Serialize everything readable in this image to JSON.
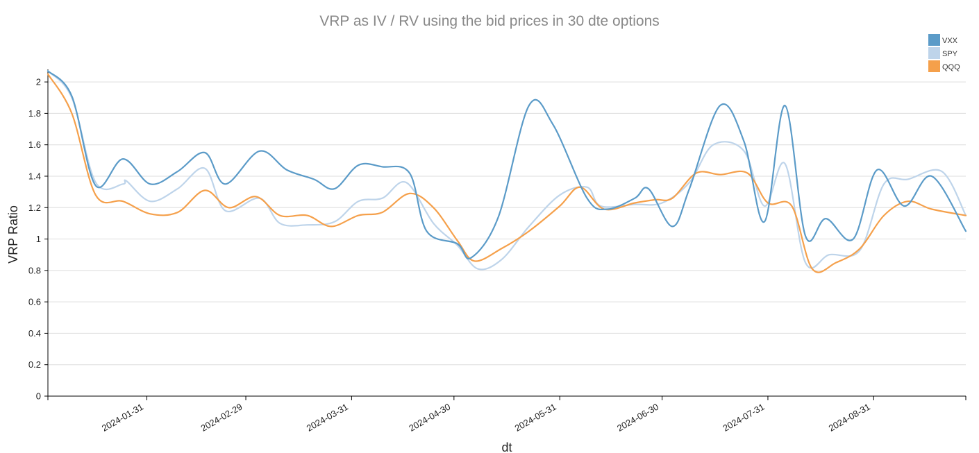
{
  "chart_data": {
    "type": "line",
    "title": "VRP as IV / RV using the bid prices in 30 dte options",
    "xlabel": "dt",
    "ylabel": "VRP Ratio",
    "ylim": [
      0,
      2.08
    ],
    "xlim": [
      "2024-01-02",
      "2024-09-27"
    ],
    "y_ticks": [
      0,
      0.2,
      0.4,
      0.6,
      0.8,
      1,
      1.2,
      1.4,
      1.6,
      1.8,
      2
    ],
    "x_ticks": [
      "2024-01-31",
      "2024-02-29",
      "2024-03-31",
      "2024-04-30",
      "2024-05-31",
      "2024-06-30",
      "2024-07-31",
      "2024-08-31"
    ],
    "grid": true,
    "legend_position": "top-right",
    "series": [
      {
        "name": "VXX",
        "color": "#5b9bc8",
        "points": [
          [
            "2024-01-02",
            2.07
          ],
          [
            "2024-01-09",
            1.91
          ],
          [
            "2024-01-16",
            1.34
          ],
          [
            "2024-01-24",
            1.51
          ],
          [
            "2024-02-01",
            1.35
          ],
          [
            "2024-02-09",
            1.43
          ],
          [
            "2024-02-17",
            1.55
          ],
          [
            "2024-02-23",
            1.35
          ],
          [
            "2024-03-04",
            1.56
          ],
          [
            "2024-03-12",
            1.44
          ],
          [
            "2024-03-20",
            1.38
          ],
          [
            "2024-03-26",
            1.32
          ],
          [
            "2024-04-02",
            1.47
          ],
          [
            "2024-04-09",
            1.46
          ],
          [
            "2024-04-17",
            1.42
          ],
          [
            "2024-04-22",
            1.05
          ],
          [
            "2024-05-01",
            0.97
          ],
          [
            "2024-05-05",
            0.88
          ],
          [
            "2024-05-13",
            1.14
          ],
          [
            "2024-05-22",
            1.85
          ],
          [
            "2024-05-29",
            1.73
          ],
          [
            "2024-06-08",
            1.26
          ],
          [
            "2024-06-14",
            1.19
          ],
          [
            "2024-06-22",
            1.26
          ],
          [
            "2024-06-26",
            1.32
          ],
          [
            "2024-07-03",
            1.08
          ],
          [
            "2024-07-08",
            1.32
          ],
          [
            "2024-07-17",
            1.85
          ],
          [
            "2024-07-24",
            1.62
          ],
          [
            "2024-07-30",
            1.11
          ],
          [
            "2024-08-05",
            1.85
          ],
          [
            "2024-08-11",
            1.02
          ],
          [
            "2024-08-17",
            1.13
          ],
          [
            "2024-08-25",
            1.0
          ],
          [
            "2024-09-01",
            1.44
          ],
          [
            "2024-09-09",
            1.21
          ],
          [
            "2024-09-17",
            1.4
          ],
          [
            "2024-09-27",
            1.05
          ]
        ]
      },
      {
        "name": "SPY",
        "color": "#bed4ea",
        "points": [
          [
            "2024-01-02",
            2.07
          ],
          [
            "2024-01-09",
            1.9
          ],
          [
            "2024-01-16",
            1.36
          ],
          [
            "2024-01-24",
            1.35
          ],
          [
            "2024-01-25",
            1.37
          ],
          [
            "2024-02-01",
            1.24
          ],
          [
            "2024-02-09",
            1.32
          ],
          [
            "2024-02-17",
            1.45
          ],
          [
            "2024-02-23",
            1.18
          ],
          [
            "2024-03-04",
            1.26
          ],
          [
            "2024-03-10",
            1.1
          ],
          [
            "2024-03-18",
            1.09
          ],
          [
            "2024-03-26",
            1.11
          ],
          [
            "2024-04-02",
            1.24
          ],
          [
            "2024-04-09",
            1.26
          ],
          [
            "2024-04-16",
            1.36
          ],
          [
            "2024-04-24",
            1.1
          ],
          [
            "2024-05-01",
            0.96
          ],
          [
            "2024-05-07",
            0.81
          ],
          [
            "2024-05-14",
            0.87
          ],
          [
            "2024-05-22",
            1.08
          ],
          [
            "2024-05-31",
            1.28
          ],
          [
            "2024-06-08",
            1.33
          ],
          [
            "2024-06-12",
            1.21
          ],
          [
            "2024-06-22",
            1.22
          ],
          [
            "2024-06-30",
            1.23
          ],
          [
            "2024-07-08",
            1.36
          ],
          [
            "2024-07-15",
            1.6
          ],
          [
            "2024-07-24",
            1.56
          ],
          [
            "2024-07-30",
            1.21
          ],
          [
            "2024-08-05",
            1.48
          ],
          [
            "2024-08-11",
            0.85
          ],
          [
            "2024-08-18",
            0.9
          ],
          [
            "2024-08-27",
            0.93
          ],
          [
            "2024-09-03",
            1.35
          ],
          [
            "2024-09-10",
            1.38
          ],
          [
            "2024-09-20",
            1.43
          ],
          [
            "2024-09-27",
            1.15
          ]
        ]
      },
      {
        "name": "QQQ",
        "color": "#f5a04b",
        "points": [
          [
            "2024-01-02",
            2.05
          ],
          [
            "2024-01-09",
            1.8
          ],
          [
            "2024-01-16",
            1.28
          ],
          [
            "2024-01-24",
            1.24
          ],
          [
            "2024-02-01",
            1.16
          ],
          [
            "2024-02-09",
            1.17
          ],
          [
            "2024-02-17",
            1.31
          ],
          [
            "2024-02-24",
            1.2
          ],
          [
            "2024-03-03",
            1.27
          ],
          [
            "2024-03-10",
            1.15
          ],
          [
            "2024-03-18",
            1.15
          ],
          [
            "2024-03-25",
            1.08
          ],
          [
            "2024-04-02",
            1.15
          ],
          [
            "2024-04-09",
            1.17
          ],
          [
            "2024-04-17",
            1.29
          ],
          [
            "2024-04-24",
            1.2
          ],
          [
            "2024-05-01",
            0.99
          ],
          [
            "2024-05-06",
            0.86
          ],
          [
            "2024-05-14",
            0.94
          ],
          [
            "2024-05-22",
            1.05
          ],
          [
            "2024-05-31",
            1.21
          ],
          [
            "2024-06-06",
            1.33
          ],
          [
            "2024-06-13",
            1.19
          ],
          [
            "2024-06-22",
            1.23
          ],
          [
            "2024-06-28",
            1.25
          ],
          [
            "2024-07-03",
            1.26
          ],
          [
            "2024-07-10",
            1.42
          ],
          [
            "2024-07-17",
            1.41
          ],
          [
            "2024-07-25",
            1.42
          ],
          [
            "2024-07-31",
            1.23
          ],
          [
            "2024-08-07",
            1.21
          ],
          [
            "2024-08-13",
            0.81
          ],
          [
            "2024-08-20",
            0.85
          ],
          [
            "2024-08-27",
            0.94
          ],
          [
            "2024-09-03",
            1.15
          ],
          [
            "2024-09-10",
            1.24
          ],
          [
            "2024-09-17",
            1.19
          ],
          [
            "2024-09-27",
            1.15
          ]
        ]
      }
    ]
  }
}
